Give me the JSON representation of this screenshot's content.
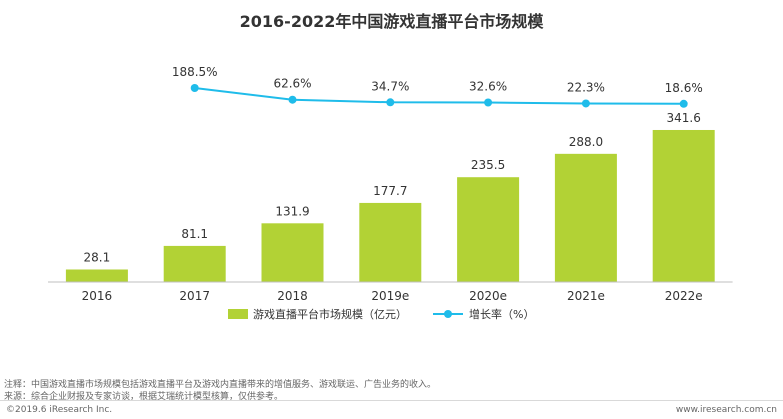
{
  "colors": {
    "bar": "#b2d235",
    "line": "#1fbcea",
    "axis": "#bfbfbf",
    "text": "#333333"
  },
  "footer": {
    "note": "注释：中国游戏直播市场规模包括游戏直播平台及游戏内直播带来的增值服务、游戏联运、广告业务的收入。",
    "source": "来源：综合企业财报及专家访谈，根据艾瑞统计模型核算，仅供参考。",
    "copyright": "©2019.6 iResearch Inc.",
    "site": "www.iresearch.com.cn"
  },
  "chart_data": {
    "type": "bar",
    "title": "2016-2022年中国游戏直播平台市场规模",
    "categories": [
      "2016",
      "2017",
      "2018",
      "2019e",
      "2020e",
      "2021e",
      "2022e"
    ],
    "series": [
      {
        "name": "游戏直播平台市场规模（亿元）",
        "type": "bar",
        "values": [
          28.1,
          81.1,
          131.9,
          177.7,
          235.5,
          288.0,
          341.6
        ],
        "labels": [
          "28.1",
          "81.1",
          "131.9",
          "177.7",
          "235.5",
          "288.0",
          "341.6"
        ]
      },
      {
        "name": "增长率（%）",
        "type": "line",
        "values": [
          null,
          188.5,
          62.6,
          34.7,
          32.6,
          22.3,
          18.6
        ],
        "labels": [
          "",
          "188.5%",
          "62.6%",
          "34.7%",
          "32.6%",
          "22.3%",
          "18.6%"
        ]
      }
    ],
    "legend_position": "bottom",
    "grid": false
  }
}
